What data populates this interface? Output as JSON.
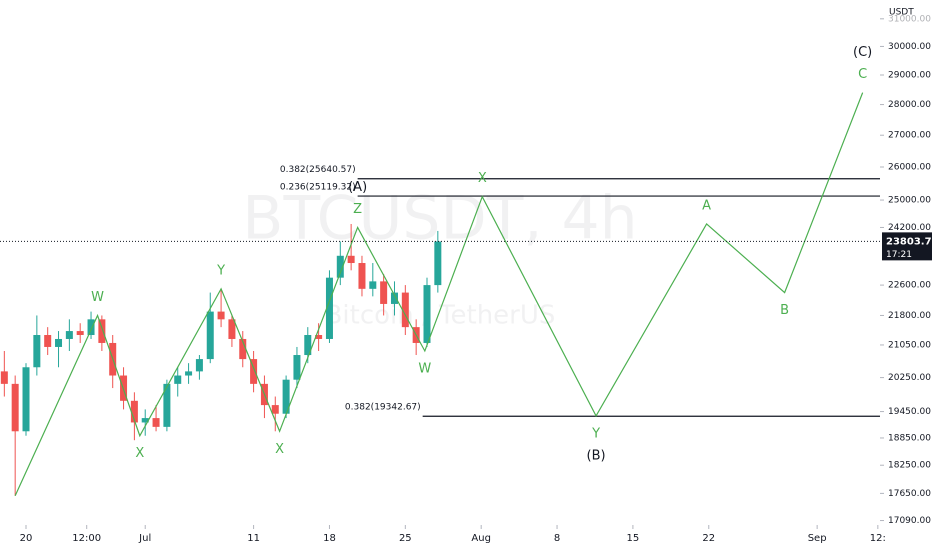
{
  "chart_data": {
    "type": "candlestick",
    "watermark": "BTCUSDT, 4h",
    "subtitle": "Bitcoin / TetherUS",
    "axis_unit": "USDT",
    "log_scale": true,
    "up_color": "#26a69a",
    "down_color": "#ef5350",
    "xlim": [
      -2.4,
      78.8
    ],
    "ylim": [
      17000,
      31700
    ],
    "xticks": [
      {
        "value": 0,
        "label": "20"
      },
      {
        "value": 5.6,
        "label": "12:00"
      },
      {
        "value": 11,
        "label": "Jul"
      },
      {
        "value": 21,
        "label": "11"
      },
      {
        "value": 28,
        "label": "18"
      },
      {
        "value": 35,
        "label": "25"
      },
      {
        "value": 42,
        "label": "Aug"
      },
      {
        "value": 49,
        "label": "8"
      },
      {
        "value": 56,
        "label": "15"
      },
      {
        "value": 63,
        "label": "22"
      },
      {
        "value": 73,
        "label": "Sep"
      },
      {
        "value": 78.6,
        "label": "12:"
      }
    ],
    "yticks": [
      {
        "value": 17090,
        "label": "17090.00"
      },
      {
        "value": 17650,
        "label": "17650.00"
      },
      {
        "value": 18250,
        "label": "18250.00"
      },
      {
        "value": 18850,
        "label": "18850.00"
      },
      {
        "value": 19450,
        "label": "19450.00"
      },
      {
        "value": 20250,
        "label": "20250.00"
      },
      {
        "value": 21050,
        "label": "21050.00"
      },
      {
        "value": 21800,
        "label": "21800.00"
      },
      {
        "value": 22600,
        "label": "22600.00"
      },
      {
        "value": 24200,
        "label": "24200.00"
      },
      {
        "value": 25000,
        "label": "25000.00"
      },
      {
        "value": 26000,
        "label": "26000.00"
      },
      {
        "value": 27000,
        "label": "27000.00"
      },
      {
        "value": 28000,
        "label": "28000.00"
      },
      {
        "value": 29000,
        "label": "29000.00"
      },
      {
        "value": 30000,
        "label": "30000.00"
      },
      {
        "value": 31000,
        "label": "31000.00"
      }
    ],
    "x": [
      -2,
      -1,
      0,
      1,
      2,
      3,
      4,
      5,
      6,
      7,
      8,
      9,
      10,
      11,
      12,
      13,
      14,
      15,
      16,
      17,
      18,
      19,
      20,
      21,
      22,
      23,
      24,
      25,
      26,
      27,
      28,
      29,
      30,
      31,
      32,
      33,
      34,
      35,
      36,
      37,
      38
    ],
    "open": [
      20400,
      20100,
      19000,
      20500,
      21300,
      21000,
      21200,
      21400,
      21300,
      21700,
      21100,
      20300,
      19700,
      19200,
      19300,
      19100,
      20100,
      20300,
      20400,
      20700,
      21900,
      21700,
      21200,
      20700,
      20100,
      19600,
      19400,
      20200,
      20800,
      21300,
      21200,
      22800,
      23400,
      23200,
      22500,
      22700,
      22100,
      22400,
      21500,
      21100,
      22600
    ],
    "high": [
      20900,
      20300,
      20600,
      21800,
      21500,
      21400,
      21700,
      21600,
      21900,
      21800,
      21300,
      20500,
      19900,
      19500,
      19600,
      20200,
      20500,
      20600,
      20800,
      22400,
      22500,
      21800,
      21400,
      20900,
      20300,
      19800,
      20300,
      21000,
      21500,
      21600,
      23000,
      23800,
      24300,
      23400,
      23200,
      22900,
      22700,
      22600,
      21700,
      22800,
      24100
    ],
    "low": [
      19800,
      17600,
      18900,
      20300,
      20800,
      20500,
      20900,
      21100,
      21200,
      20900,
      20000,
      19500,
      18800,
      18900,
      19000,
      19000,
      19800,
      20100,
      20200,
      20600,
      21500,
      21000,
      20500,
      19900,
      19300,
      19000,
      19300,
      20000,
      20600,
      20900,
      21100,
      22600,
      23000,
      22300,
      22300,
      21800,
      21800,
      21300,
      20800,
      21000,
      22400
    ],
    "close": [
      20100,
      19000,
      20500,
      21300,
      21000,
      21200,
      21400,
      21300,
      21700,
      21100,
      20300,
      19700,
      19200,
      19300,
      19100,
      20100,
      20300,
      20400,
      20700,
      21900,
      21700,
      21200,
      20700,
      20100,
      19600,
      19400,
      20200,
      20800,
      21300,
      21200,
      22800,
      23400,
      23200,
      22500,
      22700,
      22100,
      22400,
      21500,
      21100,
      22600,
      23800
    ],
    "wave": {
      "color": "#4caf50",
      "x": [
        -1,
        6.6,
        10.5,
        18,
        23.4,
        30.6,
        36.8,
        42.1,
        52.6,
        62.8,
        70,
        77.2
      ],
      "values": [
        17600,
        21800,
        18900,
        22500,
        19000,
        24200,
        20900,
        25100,
        19350,
        24300,
        22400,
        28400
      ],
      "labels": [
        null,
        "W",
        "X",
        "Y",
        "X",
        "Z",
        "W",
        "X",
        "Y",
        "A",
        "B",
        "C"
      ],
      "degree_labels": [
        null,
        null,
        null,
        null,
        null,
        "(A)",
        null,
        null,
        "(B)",
        null,
        null,
        "(C)"
      ]
    },
    "levels": [
      {
        "label": "0.382(25640.57)",
        "value": 25640.57,
        "x_start": 30.6
      },
      {
        "label": "0.236(25119.32)",
        "value": 25119.32,
        "x_start": 30.6
      },
      {
        "label": "0.382(19342.67)",
        "value": 19342.67,
        "x_start": 36.6
      }
    ],
    "current_price": {
      "value": 23803.79,
      "countdown": "17:21"
    }
  }
}
